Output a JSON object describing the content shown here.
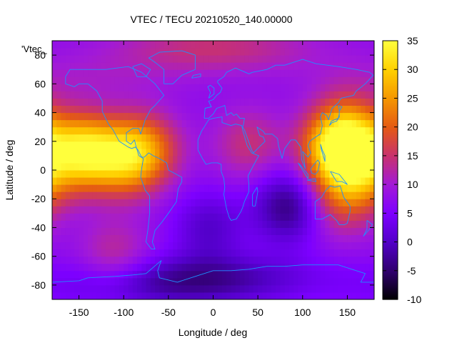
{
  "chart_data": {
    "type": "heatmap",
    "title": "VTEC / TECU 20210520_140.00000",
    "xlabel": "Longitude / deg",
    "ylabel": "Latitude / deg",
    "key_label": "'Vtec_",
    "xlim": [
      -180,
      180
    ],
    "ylim": [
      -90,
      90
    ],
    "xticks": [
      -150,
      -100,
      -50,
      0,
      50,
      100,
      150
    ],
    "yticks": [
      -80,
      -60,
      -40,
      -20,
      0,
      20,
      40,
      60,
      80
    ],
    "colorbar": {
      "range": [
        -10,
        35
      ],
      "ticks": [
        -10,
        -5,
        0,
        5,
        10,
        15,
        20,
        25,
        30,
        35
      ],
      "palette": [
        "#000000",
        "#30006e",
        "#5200c8",
        "#7d00ff",
        "#a21ad7",
        "#c8326e",
        "#e45a14",
        "#f59700",
        "#ffd000",
        "#ffff3c"
      ]
    },
    "coastline_color": "#1e90ff",
    "grid": false,
    "data_features": [
      {
        "feature": "enhancement",
        "lon": -147,
        "lat": 13,
        "value": 32
      },
      {
        "feature": "enhancement",
        "lon": -100,
        "lat": 8,
        "value": 24
      },
      {
        "feature": "enhancement",
        "lon": -75,
        "lat": 15,
        "value": 20
      },
      {
        "feature": "enhancement",
        "lon": 140,
        "lat": 13,
        "value": 30
      },
      {
        "feature": "enhancement",
        "lon": 150,
        "lat": 28,
        "value": 22
      },
      {
        "feature": "enhancement",
        "lon": 160,
        "lat": -5,
        "value": 20
      },
      {
        "feature": "enhancement",
        "lon": 40,
        "lat": 18,
        "value": 15
      },
      {
        "feature": "enhancement",
        "lon": 140,
        "lat": -25,
        "value": 14
      },
      {
        "feature": "enhancement",
        "lon": -110,
        "lat": -60,
        "value": 14
      },
      {
        "feature": "enhancement",
        "lon": 0,
        "lat": 85,
        "value": 15
      },
      {
        "feature": "enhancement",
        "lon": -145,
        "lat": 65,
        "value": 10
      },
      {
        "feature": "depletion",
        "lon": 85,
        "lat": -25,
        "value": -5
      },
      {
        "feature": "depletion",
        "lon": -5,
        "lat": -40,
        "value": 0
      },
      {
        "feature": "depletion",
        "lon": 10,
        "lat": -75,
        "value": 0
      },
      {
        "feature": "depletion",
        "lon": -70,
        "lat": -80,
        "value": 1
      }
    ],
    "background_value": 7
  }
}
